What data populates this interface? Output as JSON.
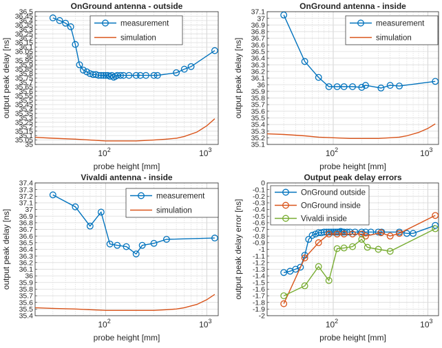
{
  "chart_data": [
    {
      "type": "line",
      "title": "OnGround antenna - outside",
      "xlabel": "probe height [mm]",
      "ylabel": "output peak delay [ns]",
      "xscale": "log",
      "xlim": [
        20,
        1300
      ],
      "ylim": [
        35,
        36.5
      ],
      "ytick_step": 0.05,
      "xtick_labels": [
        "10^2",
        "10^3"
      ],
      "grid": true,
      "legend": "top-center",
      "series": [
        {
          "name": "measurement",
          "color": "#0072BD",
          "marker": "circle",
          "x": [
            30,
            35,
            40,
            45,
            50,
            55,
            60,
            65,
            70,
            75,
            80,
            85,
            90,
            95,
            100,
            105,
            110,
            115,
            120,
            125,
            130,
            140,
            150,
            170,
            200,
            220,
            250,
            300,
            325,
            500,
            600,
            700,
            1200
          ],
          "y": [
            36.43,
            36.4,
            36.37,
            36.33,
            36.13,
            35.9,
            35.84,
            35.82,
            35.8,
            35.79,
            35.79,
            35.78,
            35.78,
            35.78,
            35.78,
            35.78,
            35.77,
            35.78,
            35.76,
            35.77,
            35.78,
            35.78,
            35.78,
            35.78,
            35.78,
            35.78,
            35.78,
            35.78,
            35.78,
            35.81,
            35.85,
            35.88,
            36.06
          ]
        },
        {
          "name": "simulation",
          "color": "#D95319",
          "marker": "none",
          "x": [
            20,
            30,
            50,
            70,
            100,
            150,
            200,
            300,
            400,
            500,
            600,
            800,
            1000,
            1200
          ],
          "y": [
            35.08,
            35.07,
            35.06,
            35.05,
            35.04,
            35.04,
            35.04,
            35.05,
            35.06,
            35.07,
            35.09,
            35.14,
            35.21,
            35.29
          ]
        }
      ]
    },
    {
      "type": "line",
      "title": "OnGround antenna - inside",
      "xlabel": "probe height [mm]",
      "ylabel": "output peak delay [ns]",
      "xscale": "log",
      "xlim": [
        20,
        1300
      ],
      "ylim": [
        35.1,
        37.1
      ],
      "ytick_step": 0.1,
      "xtick_labels": [
        "10^2",
        "10^3"
      ],
      "grid": true,
      "legend": "top-right",
      "series": [
        {
          "name": "measurement",
          "color": "#0072BD",
          "marker": "circle",
          "x": [
            30,
            50,
            70,
            90,
            110,
            130,
            160,
            200,
            220,
            320,
            400,
            500,
            1200
          ],
          "y": [
            37.05,
            36.35,
            36.11,
            35.97,
            35.97,
            35.97,
            35.97,
            35.96,
            35.99,
            35.95,
            35.99,
            35.98,
            36.05
          ]
        },
        {
          "name": "simulation",
          "color": "#D95319",
          "marker": "none",
          "x": [
            20,
            30,
            50,
            70,
            100,
            150,
            200,
            300,
            400,
            500,
            600,
            800,
            1000,
            1200
          ],
          "y": [
            35.26,
            35.25,
            35.23,
            35.21,
            35.2,
            35.19,
            35.19,
            35.19,
            35.2,
            35.21,
            35.23,
            35.28,
            35.34,
            35.41
          ]
        }
      ]
    },
    {
      "type": "line",
      "title": "Vivaldi antenna - inside",
      "xlabel": "probe height [mm]",
      "ylabel": "output peak delay [ns]",
      "xscale": "log",
      "xlim": [
        20,
        1300
      ],
      "ylim": [
        35.4,
        37.4
      ],
      "ytick_step": 0.1,
      "xtick_labels": [
        "10^2",
        "10^3"
      ],
      "grid": true,
      "legend": "top-right",
      "series": [
        {
          "name": "measurement",
          "color": "#0072BD",
          "marker": "circle",
          "x": [
            30,
            50,
            70,
            90,
            110,
            130,
            160,
            200,
            230,
            300,
            400,
            1200
          ],
          "y": [
            37.22,
            37.04,
            36.75,
            36.96,
            36.48,
            36.46,
            36.44,
            36.33,
            36.46,
            36.49,
            36.55,
            36.57
          ]
        },
        {
          "name": "simulation",
          "color": "#D95319",
          "marker": "none",
          "x": [
            20,
            30,
            50,
            70,
            100,
            150,
            200,
            300,
            400,
            500,
            600,
            800,
            1000,
            1200
          ],
          "y": [
            35.52,
            35.51,
            35.5,
            35.49,
            35.48,
            35.48,
            35.48,
            35.48,
            35.49,
            35.5,
            35.52,
            35.57,
            35.64,
            35.72
          ]
        }
      ]
    },
    {
      "type": "line",
      "title": "Output peak delay errors",
      "xlabel": "probe height [mm]",
      "ylabel": "output peak delay error [ns]",
      "xscale": "log",
      "xlim": [
        20,
        1300
      ],
      "ylim": [
        -2,
        0
      ],
      "ytick_step": 0.1,
      "xtick_labels": [
        "10^2",
        "10^3"
      ],
      "grid": true,
      "legend": "top-left",
      "series": [
        {
          "name": "OnGround outside",
          "color": "#0072BD",
          "marker": "circle",
          "x": [
            30,
            35,
            40,
            45,
            50,
            55,
            60,
            65,
            70,
            75,
            80,
            85,
            90,
            95,
            100,
            105,
            110,
            115,
            120,
            125,
            130,
            140,
            150,
            170,
            200,
            220,
            250,
            300,
            325,
            500,
            600,
            700,
            1200
          ],
          "y": [
            -1.35,
            -1.33,
            -1.3,
            -1.27,
            -1.09,
            -0.85,
            -0.79,
            -0.77,
            -0.75,
            -0.75,
            -0.74,
            -0.74,
            -0.74,
            -0.74,
            -0.74,
            -0.74,
            -0.74,
            -0.74,
            -0.73,
            -0.74,
            -0.74,
            -0.74,
            -0.74,
            -0.74,
            -0.74,
            -0.74,
            -0.74,
            -0.74,
            -0.74,
            -0.74,
            -0.76,
            -0.76,
            -0.64
          ]
        },
        {
          "name": "OnGround inside",
          "color": "#D95319",
          "marker": "circle",
          "x": [
            30,
            50,
            70,
            90,
            110,
            130,
            160,
            200,
            220,
            320,
            400,
            500,
            1200
          ],
          "y": [
            -1.82,
            -1.13,
            -0.9,
            -0.77,
            -0.77,
            -0.77,
            -0.77,
            -0.77,
            -0.8,
            -0.75,
            -0.8,
            -0.76,
            -0.49
          ]
        },
        {
          "name": "Vivaldi inside",
          "color": "#77AC30",
          "marker": "circle",
          "x": [
            30,
            50,
            70,
            90,
            110,
            130,
            160,
            200,
            230,
            300,
            400,
            1200
          ],
          "y": [
            -1.7,
            -1.55,
            -1.26,
            -1.47,
            -0.99,
            -0.98,
            -0.96,
            -0.85,
            -0.97,
            -1.0,
            -1.03,
            -0.69
          ]
        }
      ]
    }
  ]
}
